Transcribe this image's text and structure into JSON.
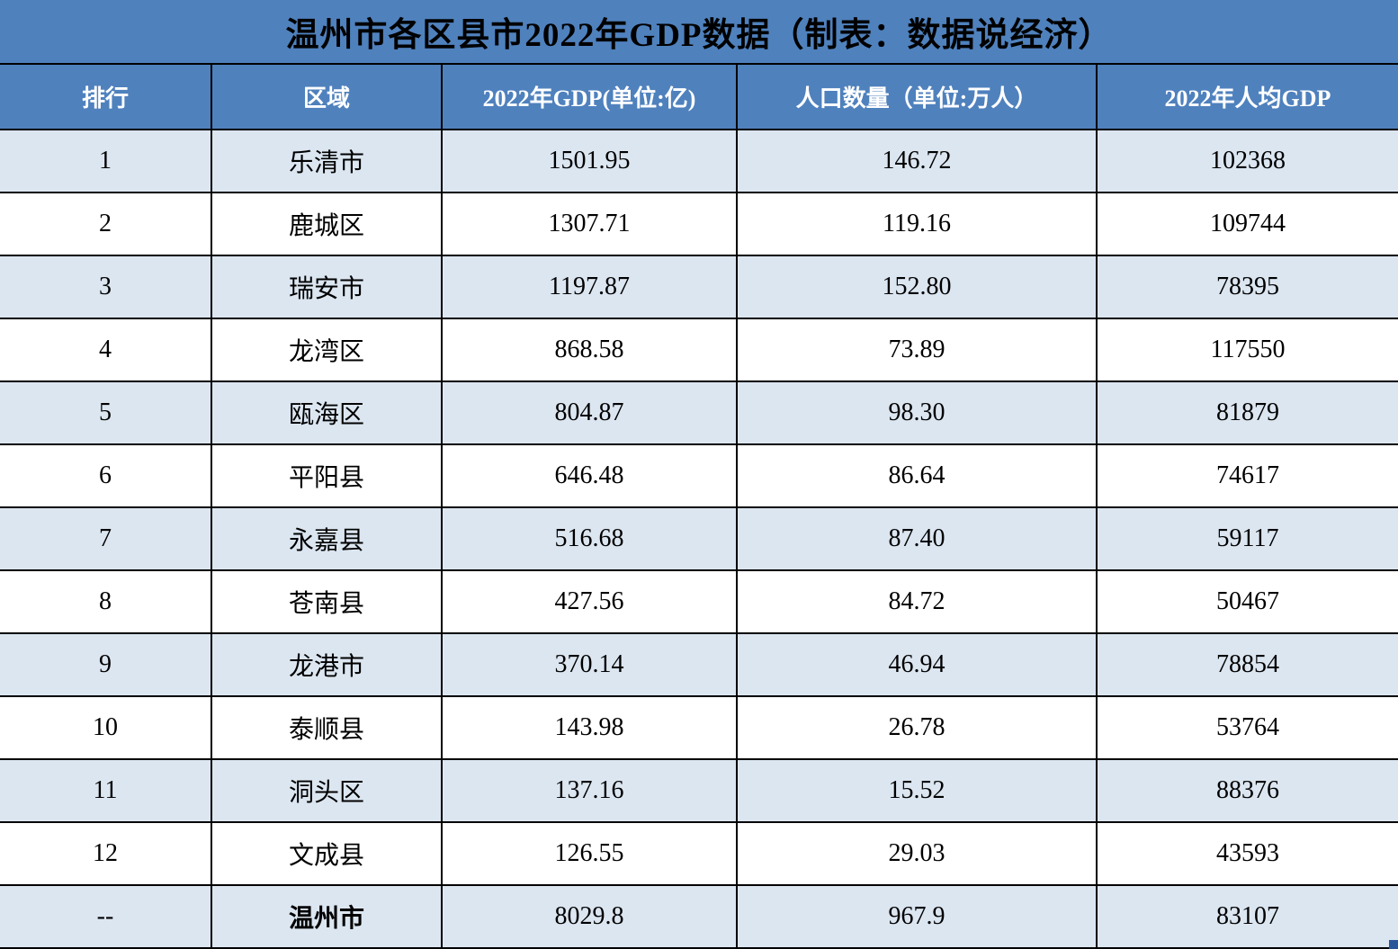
{
  "chart_data": {
    "type": "table",
    "title": "温州市各区县市2022年GDP数据（制表：数据说经济）",
    "columns": [
      "排行",
      "区域",
      "2022年GDP(单位:亿)",
      "人口数量（单位:万人）",
      "2022年人均GDP"
    ],
    "rows": [
      [
        "1",
        "乐清市",
        "1501.95",
        "146.72",
        "102368"
      ],
      [
        "2",
        "鹿城区",
        "1307.71",
        "119.16",
        "109744"
      ],
      [
        "3",
        "瑞安市",
        "1197.87",
        "152.80",
        "78395"
      ],
      [
        "4",
        "龙湾区",
        "868.58",
        "73.89",
        "117550"
      ],
      [
        "5",
        "瓯海区",
        "804.87",
        "98.30",
        "81879"
      ],
      [
        "6",
        "平阳县",
        "646.48",
        "86.64",
        "74617"
      ],
      [
        "7",
        "永嘉县",
        "516.68",
        "87.40",
        "59117"
      ],
      [
        "8",
        "苍南县",
        "427.56",
        "84.72",
        "50467"
      ],
      [
        "9",
        "龙港市",
        "370.14",
        "46.94",
        "78854"
      ],
      [
        "10",
        "泰顺县",
        "143.98",
        "26.78",
        "53764"
      ],
      [
        "11",
        "洞头区",
        "137.16",
        "15.52",
        "88376"
      ],
      [
        "12",
        "文成县",
        "126.55",
        "29.03",
        "43593"
      ],
      [
        "--",
        "温州市",
        "8029.8",
        "967.9",
        "83107"
      ]
    ],
    "total_row_region": "温州市",
    "layout": {
      "striped": true,
      "stripe_start": "light"
    }
  },
  "colors": {
    "header_blue": "#4F81BD",
    "row_light": "#DCE6F1",
    "row_white": "#FFFFFF",
    "border": "#000000",
    "title_text": "#000000",
    "header_text": "#FFFFFF",
    "body_text": "#000000",
    "fill_handle": "#2A5699"
  }
}
